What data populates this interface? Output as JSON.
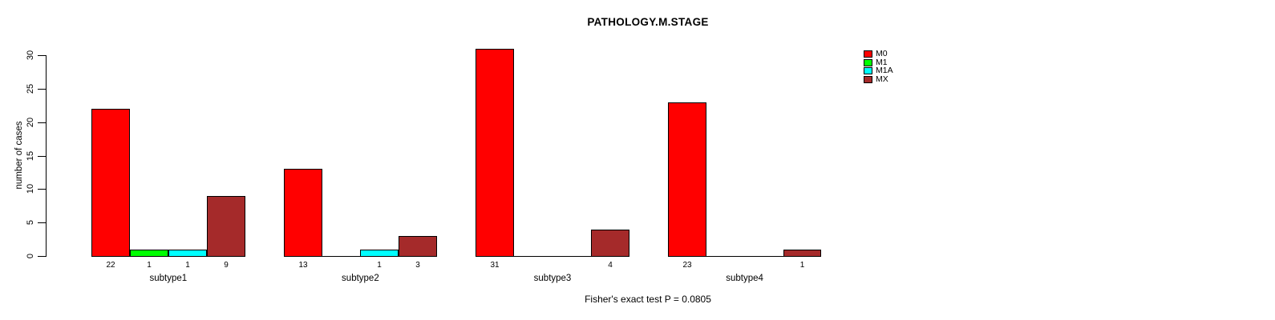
{
  "title": "PATHOLOGY.M.STAGE",
  "chart_data": {
    "type": "bar",
    "title": "PATHOLOGY.M.STAGE",
    "subtitle": "",
    "xlabel": "",
    "ylabel": "number of cases",
    "categories": [
      "subtype1",
      "subtype2",
      "subtype3",
      "subtype4"
    ],
    "series": [
      {
        "name": "M0",
        "color": "#FF0000",
        "values": [
          22,
          13,
          31,
          23
        ]
      },
      {
        "name": "M1",
        "color": "#00FF00",
        "values": [
          1,
          0,
          0,
          0
        ]
      },
      {
        "name": "M1A",
        "color": "#00FFFF",
        "values": [
          1,
          1,
          0,
          0
        ]
      },
      {
        "name": "MX",
        "color": "#A52A2A",
        "values": [
          9,
          3,
          4,
          1
        ]
      }
    ],
    "ylim": [
      0,
      30
    ],
    "yticks": [
      0,
      5,
      10,
      15,
      20,
      25,
      30
    ],
    "grid": false,
    "bar_value_labels_shown": true,
    "zero_value_labels_hidden": true,
    "legend_position": "top-right",
    "annotation": "Fisher's exact test P = 0.0805"
  },
  "colors": {
    "background": "#FFFFFF",
    "text": "#000000",
    "bar_border": "#000000"
  }
}
